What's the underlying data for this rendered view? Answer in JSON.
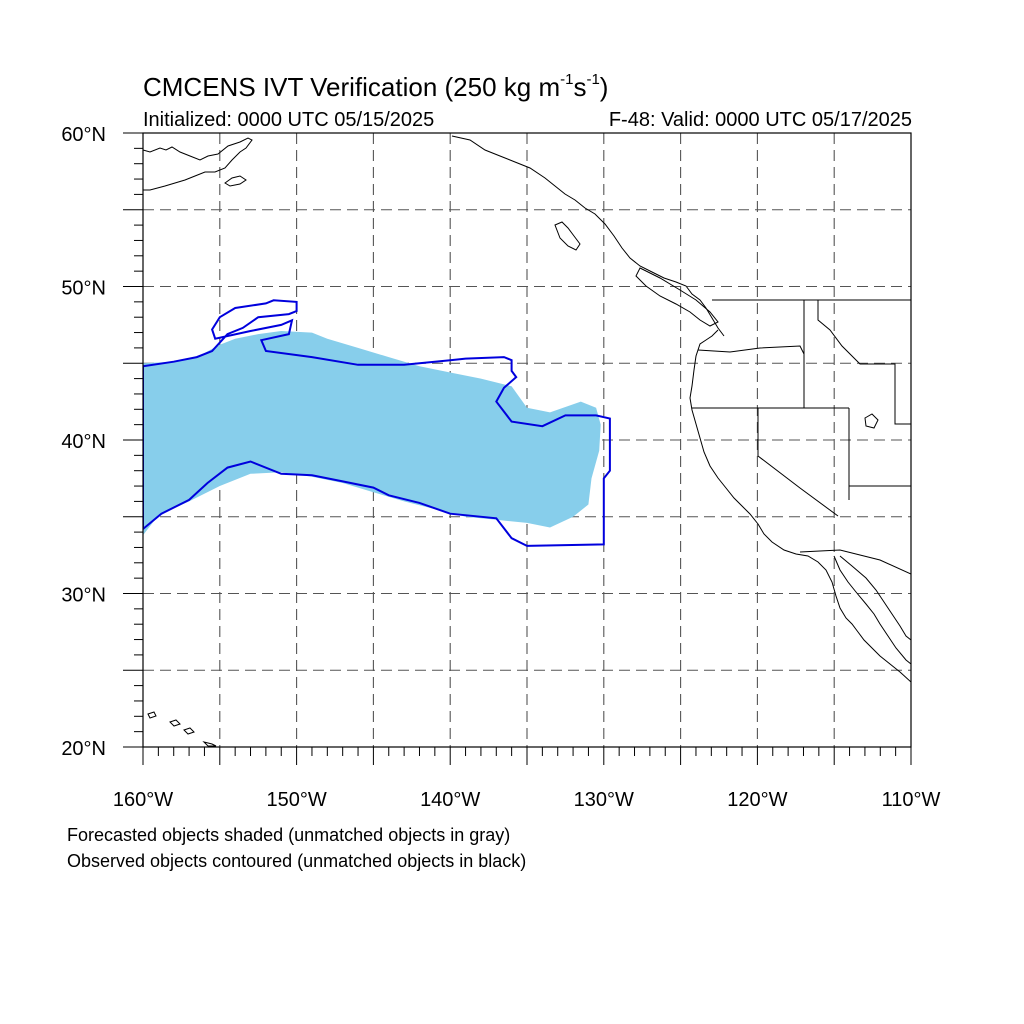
{
  "header": {
    "title_prefix": "CMCENS IVT Verification (250 kg m",
    "title_exp1": "-1",
    "title_mid": "s",
    "title_exp2": "-1",
    "title_suffix": ")",
    "initialized": "Initialized: 0000 UTC 05/15/2025",
    "valid": "F-48: Valid: 0000 UTC 05/17/2025"
  },
  "footer": {
    "line1": "Forecasted objects shaded (unmatched objects in gray)",
    "line2": "Observed objects contoured (unmatched objects in black)"
  },
  "axes": {
    "lon_range": [
      -160,
      -110
    ],
    "lat_range": [
      20,
      60
    ],
    "lat_labels": [
      {
        "value": 60,
        "text": "60°N"
      },
      {
        "value": 50,
        "text": "50°N"
      },
      {
        "value": 40,
        "text": "40°N"
      },
      {
        "value": 30,
        "text": "30°N"
      },
      {
        "value": 20,
        "text": "20°N"
      }
    ],
    "lon_labels": [
      {
        "value": -160,
        "text": "160°W"
      },
      {
        "value": -150,
        "text": "150°W"
      },
      {
        "value": -140,
        "text": "140°W"
      },
      {
        "value": -130,
        "text": "130°W"
      },
      {
        "value": -120,
        "text": "120°W"
      },
      {
        "value": -110,
        "text": "110°W"
      }
    ],
    "grid_lon": [
      -155,
      -150,
      -145,
      -140,
      -135,
      -130,
      -125,
      -120,
      -115
    ],
    "grid_lat": [
      25,
      30,
      35,
      40,
      45,
      50,
      55
    ]
  },
  "colors": {
    "forecast_fill": "#87ceeb",
    "observed_contour": "#0000dd",
    "coastline": "#000000",
    "grid": "#555555"
  },
  "forecast_object": [
    [
      -160,
      45.0
    ],
    [
      -158,
      45.1
    ],
    [
      -156.5,
      45.4
    ],
    [
      -155,
      46.2
    ],
    [
      -154,
      46.6
    ],
    [
      -152.5,
      46.9
    ],
    [
      -151,
      47.1
    ],
    [
      -149,
      47.0
    ],
    [
      -148,
      46.6
    ],
    [
      -146,
      46.0
    ],
    [
      -144,
      45.4
    ],
    [
      -142,
      44.8
    ],
    [
      -140,
      44.4
    ],
    [
      -138,
      44.0
    ],
    [
      -136,
      43.5
    ],
    [
      -135,
      42.1
    ],
    [
      -133.5,
      41.8
    ],
    [
      -131.5,
      42.5
    ],
    [
      -130.5,
      42.1
    ],
    [
      -130.2,
      41.0
    ],
    [
      -130.3,
      39.3
    ],
    [
      -130.8,
      37.5
    ],
    [
      -131,
      35.8
    ],
    [
      -132,
      35.0
    ],
    [
      -133.5,
      34.3
    ],
    [
      -135,
      34.6
    ],
    [
      -137,
      34.8
    ],
    [
      -139,
      35.0
    ],
    [
      -141,
      35.5
    ],
    [
      -143,
      36.0
    ],
    [
      -145,
      36.6
    ],
    [
      -147,
      37.2
    ],
    [
      -149,
      37.6
    ],
    [
      -151,
      37.9
    ],
    [
      -153,
      37.8
    ],
    [
      -155,
      37.0
    ],
    [
      -157,
      36.0
    ],
    [
      -159,
      35.1
    ],
    [
      -160,
      33.8
    ]
  ],
  "observed_object": [
    [
      -160,
      44.8
    ],
    [
      -158,
      45.1
    ],
    [
      -156.5,
      45.4
    ],
    [
      -155.5,
      45.8
    ],
    [
      -154.5,
      46.9
    ],
    [
      -153.5,
      47.3
    ],
    [
      -152.5,
      48.0
    ],
    [
      -150.5,
      48.2
    ],
    [
      -150,
      48.4
    ],
    [
      -150,
      49.0
    ],
    [
      -151.5,
      49.1
    ],
    [
      -152,
      48.9
    ],
    [
      -154,
      48.6
    ],
    [
      -155,
      48.0
    ],
    [
      -155.5,
      47.2
    ],
    [
      -155.3,
      46.6
    ],
    [
      -153,
      47.1
    ],
    [
      -151,
      47.5
    ],
    [
      -150.3,
      47.8
    ],
    [
      -150.5,
      46.9
    ],
    [
      -152.3,
      46.5
    ],
    [
      -152,
      45.8
    ],
    [
      -149,
      45.4
    ],
    [
      -146,
      44.9
    ],
    [
      -143,
      44.9
    ],
    [
      -140,
      45.2
    ],
    [
      -139,
      45.3
    ],
    [
      -136.5,
      45.4
    ],
    [
      -136,
      45.2
    ],
    [
      -136,
      44.5
    ],
    [
      -135.7,
      44.1
    ],
    [
      -136.5,
      43.4
    ],
    [
      -137,
      42.5
    ],
    [
      -136,
      41.2
    ],
    [
      -134,
      40.9
    ],
    [
      -132.5,
      41.6
    ],
    [
      -130.5,
      41.6
    ],
    [
      -129.6,
      41.4
    ],
    [
      -129.6,
      38.0
    ],
    [
      -130,
      37.5
    ],
    [
      -130,
      33.2
    ],
    [
      -135,
      33.1
    ],
    [
      -136,
      33.6
    ],
    [
      -137,
      34.9
    ],
    [
      -140,
      35.2
    ],
    [
      -142,
      35.9
    ],
    [
      -144,
      36.4
    ],
    [
      -145,
      36.9
    ],
    [
      -147,
      37.3
    ],
    [
      -149,
      37.7
    ],
    [
      -151,
      37.8
    ],
    [
      -153,
      38.6
    ],
    [
      -154.5,
      38.2
    ],
    [
      -155.8,
      37.2
    ],
    [
      -157,
      36.1
    ],
    [
      -158.8,
      35.2
    ],
    [
      -160,
      34.2
    ]
  ]
}
